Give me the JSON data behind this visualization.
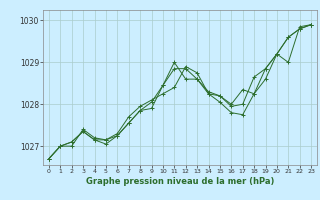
{
  "title": "Graphe pression niveau de la mer (hPa)",
  "bg_color": "#cceeff",
  "grid_color": "#aacccc",
  "line_color": "#2d6e2d",
  "xlim": [
    -0.5,
    23.5
  ],
  "ylim": [
    1026.55,
    1030.25
  ],
  "yticks": [
    1027,
    1028,
    1029,
    1030
  ],
  "xticks": [
    0,
    1,
    2,
    3,
    4,
    5,
    6,
    7,
    8,
    9,
    10,
    11,
    12,
    13,
    14,
    15,
    16,
    17,
    18,
    19,
    20,
    21,
    22,
    23
  ],
  "series": [
    [
      1026.7,
      1027.0,
      1027.0,
      1027.4,
      1027.2,
      1027.15,
      1027.3,
      1027.7,
      1027.95,
      1028.1,
      1028.25,
      1028.4,
      1028.9,
      1028.75,
      1028.25,
      1028.05,
      1027.8,
      1027.75,
      1028.25,
      1028.6,
      1029.2,
      1029.0,
      1029.85,
      1029.9
    ],
    [
      1026.7,
      1027.0,
      1027.1,
      1027.35,
      1027.15,
      1027.15,
      1027.25,
      1027.55,
      1027.85,
      1028.05,
      1028.45,
      1028.85,
      1028.85,
      1028.6,
      1028.3,
      1028.2,
      1028.0,
      1028.35,
      1028.25,
      1028.85,
      1029.2,
      1029.6,
      1029.8,
      1029.9
    ],
    [
      1026.7,
      1027.0,
      1027.1,
      1027.35,
      1027.15,
      1027.05,
      1027.25,
      1027.55,
      1027.85,
      1027.9,
      1028.45,
      1029.0,
      1028.6,
      1028.6,
      1028.25,
      1028.2,
      1027.95,
      1028.0,
      1028.65,
      1028.85,
      1029.2,
      1029.6,
      1029.8,
      1029.9
    ]
  ]
}
